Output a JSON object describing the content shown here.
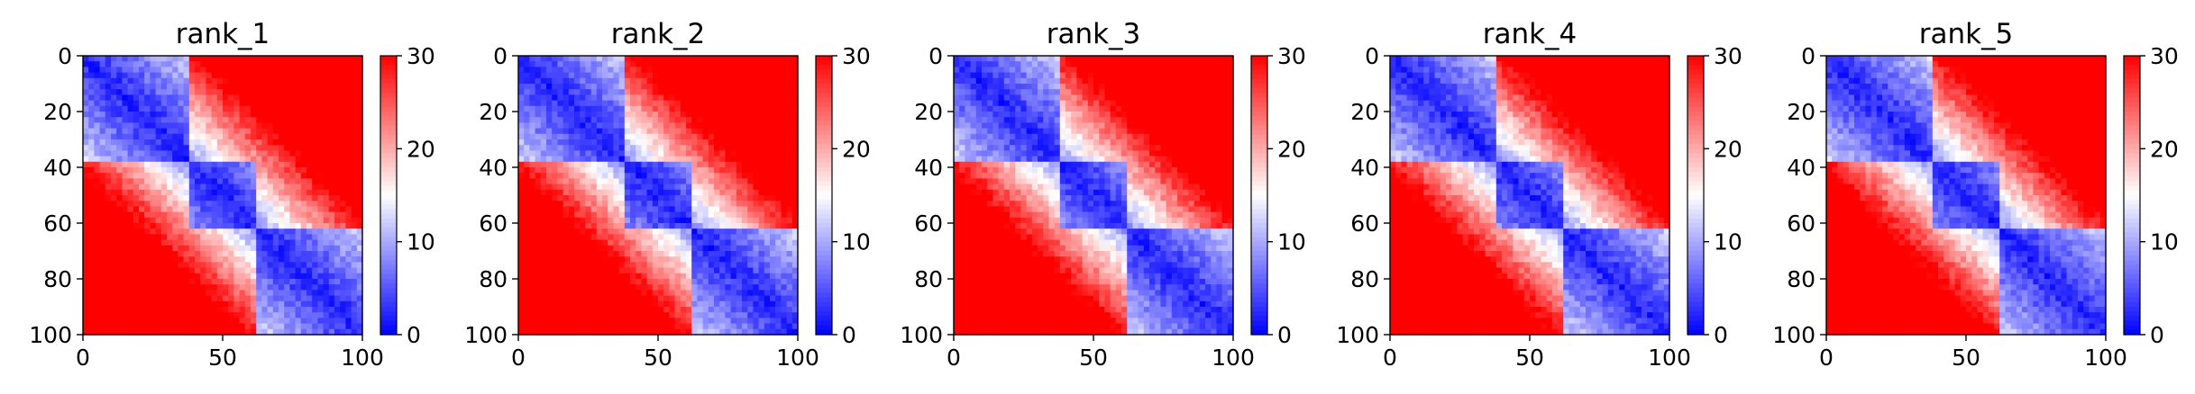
{
  "chart_data": [
    {
      "type": "heatmap",
      "title": "rank_1",
      "xlim": [
        0,
        100
      ],
      "ylim": [
        100,
        0
      ],
      "x_ticks": [
        "0",
        "50",
        "100"
      ],
      "y_ticks": [
        "0",
        "20",
        "40",
        "60",
        "80",
        "100"
      ],
      "colorbar": {
        "vmin": 0,
        "vmax": 30,
        "ticks": [
          "0",
          "10",
          "20",
          "30"
        ],
        "colormap": "bwr"
      },
      "domains": [
        [
          0,
          38
        ],
        [
          38,
          62
        ],
        [
          62,
          100
        ]
      ],
      "style_seed": 1
    },
    {
      "type": "heatmap",
      "title": "rank_2",
      "xlim": [
        0,
        100
      ],
      "ylim": [
        100,
        0
      ],
      "x_ticks": [
        "0",
        "50",
        "100"
      ],
      "y_ticks": [
        "0",
        "20",
        "40",
        "60",
        "80",
        "100"
      ],
      "colorbar": {
        "vmin": 0,
        "vmax": 30,
        "ticks": [
          "0",
          "10",
          "20",
          "30"
        ],
        "colormap": "bwr"
      },
      "domains": [
        [
          0,
          38
        ],
        [
          38,
          62
        ],
        [
          62,
          100
        ]
      ],
      "style_seed": 2
    },
    {
      "type": "heatmap",
      "title": "rank_3",
      "xlim": [
        0,
        100
      ],
      "ylim": [
        100,
        0
      ],
      "x_ticks": [
        "0",
        "50",
        "100"
      ],
      "y_ticks": [
        "0",
        "20",
        "40",
        "60",
        "80",
        "100"
      ],
      "colorbar": {
        "vmin": 0,
        "vmax": 30,
        "ticks": [
          "0",
          "10",
          "20",
          "30"
        ],
        "colormap": "bwr"
      },
      "domains": [
        [
          0,
          38
        ],
        [
          38,
          62
        ],
        [
          62,
          100
        ]
      ],
      "style_seed": 3
    },
    {
      "type": "heatmap",
      "title": "rank_4",
      "xlim": [
        0,
        100
      ],
      "ylim": [
        100,
        0
      ],
      "x_ticks": [
        "0",
        "50",
        "100"
      ],
      "y_ticks": [
        "0",
        "20",
        "40",
        "60",
        "80",
        "100"
      ],
      "colorbar": {
        "vmin": 0,
        "vmax": 30,
        "ticks": [
          "0",
          "10",
          "20",
          "30"
        ],
        "colormap": "bwr"
      },
      "domains": [
        [
          0,
          38
        ],
        [
          38,
          62
        ],
        [
          62,
          100
        ]
      ],
      "style_seed": 4
    },
    {
      "type": "heatmap",
      "title": "rank_5",
      "xlim": [
        0,
        100
      ],
      "ylim": [
        100,
        0
      ],
      "x_ticks": [
        "0",
        "50",
        "100"
      ],
      "y_ticks": [
        "0",
        "20",
        "40",
        "60",
        "80",
        "100"
      ],
      "colorbar": {
        "vmin": 0,
        "vmax": 30,
        "ticks": [
          "0",
          "10",
          "20",
          "30"
        ],
        "colormap": "bwr"
      },
      "domains": [
        [
          0,
          38
        ],
        [
          38,
          62
        ],
        [
          62,
          100
        ]
      ],
      "style_seed": 5
    }
  ]
}
